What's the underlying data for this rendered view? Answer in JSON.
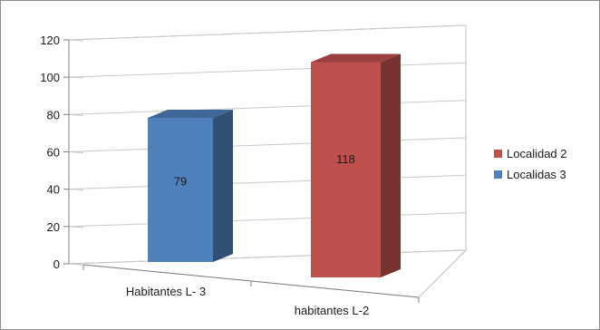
{
  "chart_data": {
    "type": "bar",
    "style": "3d-column",
    "categories": [
      "Habitantes L- 3",
      "habitantes L-2"
    ],
    "series": [
      {
        "name": "Localidas 3",
        "color": "#4f81bd",
        "values": [
          79,
          null
        ],
        "labels": [
          "79",
          ""
        ]
      },
      {
        "name": "Localidad 2",
        "color": "#c0504d",
        "values": [
          null,
          118
        ],
        "labels": [
          "",
          "118"
        ]
      }
    ],
    "y_ticks": [
      "0",
      "20",
      "40",
      "60",
      "80",
      "100",
      "120"
    ],
    "ylim": [
      0,
      120
    ],
    "grid": true,
    "legend": {
      "placement": "right",
      "items": [
        {
          "name": "Localidad 2",
          "color": "#c0504d"
        },
        {
          "name": "Localidas 3",
          "color": "#4f81bd"
        }
      ]
    }
  }
}
